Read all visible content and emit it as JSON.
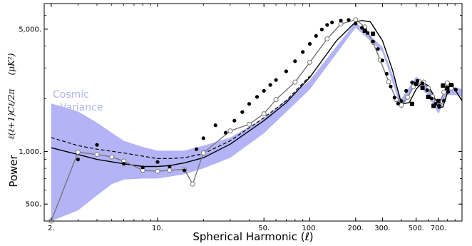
{
  "chart_data": {
    "type": "line",
    "title": "",
    "xlabel": "Spherical Harmonic (ℓ)",
    "ylabel": "Power",
    "ylabel_formula": "ℓ(ℓ+1)Cℓ/2π",
    "ylabel_units": "(μK²)",
    "x_scale": "log",
    "y_scale": "log",
    "xlim": [
      1.8,
      1000
    ],
    "ylim": [
      400,
      7000
    ],
    "x_ticks": [
      {
        "value": 2,
        "label": "2."
      },
      {
        "value": 10,
        "label": "10."
      },
      {
        "value": 50,
        "label": "50."
      },
      {
        "value": 100,
        "label": "100."
      },
      {
        "value": 200,
        "label": "200."
      },
      {
        "value": 300,
        "label": "300."
      },
      {
        "value": 500,
        "label": "500."
      },
      {
        "value": 700,
        "label": "700."
      }
    ],
    "y_ticks": [
      {
        "value": 500,
        "label": "500."
      },
      {
        "value": 1000,
        "label": "1,000."
      },
      {
        "value": 5000,
        "label": "5,000."
      }
    ],
    "cosmic_variance_label": [
      "Cosmic",
      "Variance"
    ],
    "colors": {
      "band": "#b3b3f5",
      "model": "#000000",
      "dashed": "#000000",
      "open_series": "#777777",
      "filled": "#000000"
    },
    "cosmic_variance_band": {
      "x": [
        2,
        3,
        4,
        5,
        6,
        8,
        10,
        15,
        20,
        30,
        50,
        100,
        200,
        300,
        400,
        500,
        600,
        700,
        800,
        900,
        1000
      ],
      "lower": [
        340,
        460,
        560,
        650,
        690,
        700,
        700,
        740,
        800,
        920,
        1270,
        2260,
        5100,
        3700,
        1740,
        2450,
        2080,
        1640,
        2100,
        2100,
        2050
      ],
      "upper": [
        1880,
        1690,
        1460,
        1280,
        1150,
        1060,
        1010,
        1010,
        1080,
        1200,
        1550,
        2550,
        5500,
        3950,
        2000,
        2680,
        2320,
        1880,
        2330,
        2330,
        2270
      ]
    },
    "series": [
      {
        "style": "solid",
        "x": [
          2,
          3,
          4,
          6,
          8,
          10,
          12,
          15,
          20,
          30,
          50,
          70,
          100,
          150,
          200,
          220,
          250,
          300,
          350,
          400,
          450,
          500,
          550,
          600,
          650,
          700,
          750,
          800,
          850,
          900,
          1000
        ],
        "y": [
          1050,
          960,
          900,
          850,
          820,
          820,
          830,
          860,
          920,
          1100,
          1500,
          1900,
          2650,
          4300,
          5500,
          5600,
          5500,
          4300,
          2900,
          1870,
          1900,
          2270,
          2480,
          2380,
          2100,
          1760,
          1800,
          2150,
          2400,
          2250,
          1950
        ]
      },
      {
        "style": "dashed",
        "x": [
          2,
          3,
          4,
          6,
          8,
          10,
          12,
          15,
          20,
          30,
          50,
          70,
          100
        ],
        "y": [
          1200,
          1080,
          1030,
          980,
          940,
          910,
          910,
          920,
          970,
          1150,
          1560,
          1950,
          2700
        ]
      },
      {
        "style": "open-circles",
        "x": [
          2,
          3,
          4,
          5,
          6,
          8,
          10,
          12,
          15,
          17,
          20,
          30,
          40,
          50,
          60,
          80,
          100,
          130,
          160,
          200,
          230,
          260,
          290,
          330,
          370,
          400,
          440,
          480,
          520,
          560,
          600,
          640,
          680,
          720,
          760,
          800,
          850
        ],
        "y": [
          350,
          990,
          960,
          930,
          880,
          780,
          770,
          780,
          790,
          650,
          980,
          1310,
          1430,
          1640,
          1980,
          2490,
          3230,
          4400,
          5350,
          5660,
          5150,
          4200,
          3330,
          2500,
          1980,
          1840,
          2040,
          2350,
          2520,
          2490,
          2300,
          2060,
          1900,
          1920,
          2180,
          2460,
          2300
        ]
      },
      {
        "style": "filled-circles",
        "x": [
          3,
          4,
          6,
          8,
          10,
          12,
          15,
          18,
          20,
          24,
          28,
          32,
          36,
          40,
          45,
          50,
          55,
          60,
          70,
          80,
          90,
          100,
          110,
          120,
          130,
          140,
          160,
          180,
          200,
          220,
          240,
          260,
          280,
          300,
          320,
          340,
          360,
          380,
          400,
          430,
          470,
          510,
          550,
          590,
          630,
          670,
          710,
          760,
          810,
          860,
          910
        ],
        "y": [
          900,
          1090,
          850,
          810,
          870,
          820,
          780,
          1030,
          1190,
          1410,
          1280,
          1500,
          1680,
          1870,
          2050,
          2220,
          2400,
          2560,
          2870,
          3280,
          3700,
          4120,
          4570,
          4980,
          5280,
          5460,
          5590,
          5640,
          5380,
          5090,
          4750,
          4250,
          3850,
          3310,
          2780,
          2350,
          2030,
          1880,
          1940,
          2220,
          2480,
          2530,
          2450,
          2240,
          2010,
          1870,
          1820,
          1950,
          2190,
          2390,
          2250
        ]
      },
      {
        "style": "filled-squares",
        "x": [
          230,
          260,
          470,
          500,
          550,
          600,
          650,
          700,
          750,
          800,
          850
        ],
        "y": [
          4900,
          4700,
          1870,
          2430,
          2310,
          2050,
          1820,
          1940,
          2380,
          2300,
          2400
        ]
      }
    ]
  }
}
